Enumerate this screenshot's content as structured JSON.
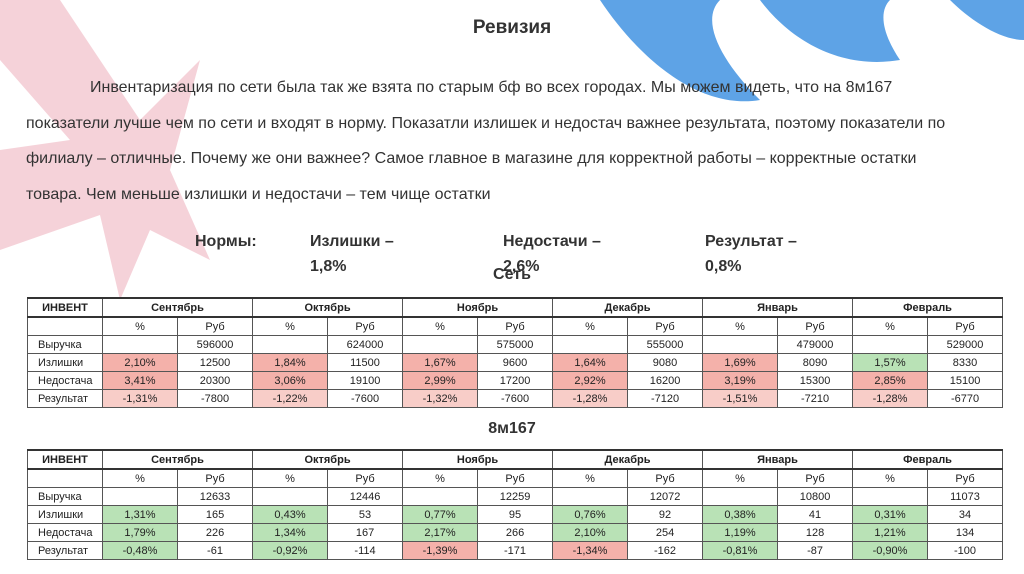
{
  "title": "Ревизия",
  "paragraph": "Инвентаризация по сети была так же взята по старым бф во всех городах. Мы можем видеть, что на 8м167 показатели лучше чем по сети и входят в норму. Показатли излишек и недостач важнее результата, поэтому показатели по филиалу – отличные. Почему же они важнее? Самое главное в магазине для корректной работы – корректные остатки товара. Чем меньше излишки и недостачи – тем чище остатки",
  "norms": {
    "label": "Нормы:",
    "items": [
      "Излишки – 1,8%",
      "Недостачи – 2,6%",
      "Результат – 0,8%"
    ]
  },
  "tables": [
    {
      "caption": "Сеть",
      "header_label": "ИНВЕНТ",
      "months": [
        "Сентябрь",
        "Октябрь",
        "Ноябрь",
        "Декабрь",
        "Январь",
        "Февраль"
      ],
      "units": [
        "%",
        "Руб"
      ],
      "rows": [
        {
          "label": "Выручка",
          "cells": [
            null,
            "596000",
            null,
            "624000",
            null,
            "575000",
            null,
            "555000",
            null,
            "479000",
            null,
            "529000"
          ]
        },
        {
          "label": "Излишки",
          "cells": [
            "2,10%",
            "12500",
            "1,84%",
            "11500",
            "1,67%",
            "9600",
            "1,64%",
            "9080",
            "1,69%",
            "8090",
            "1,57%",
            "8330"
          ],
          "colors": [
            "#f4b1aa",
            "#f4b1aa",
            "#f4b1aa",
            "#f4b1aa",
            "#f4b1aa",
            "#b9e2b6"
          ]
        },
        {
          "label": "Недостача",
          "cells": [
            "3,41%",
            "20300",
            "3,06%",
            "19100",
            "2,99%",
            "17200",
            "2,92%",
            "16200",
            "3,19%",
            "15300",
            "2,85%",
            "15100"
          ],
          "colors": [
            "#f4b1aa",
            "#f4b1aa",
            "#f4b1aa",
            "#f4b1aa",
            "#f4b1aa",
            "#f4b1aa"
          ]
        },
        {
          "label": "Результат",
          "cells": [
            "-1,31%",
            "-7800",
            "-1,22%",
            "-7600",
            "-1,32%",
            "-7600",
            "-1,28%",
            "-7120",
            "-1,51%",
            "-7210",
            "-1,28%",
            "-6770"
          ],
          "colors": [
            "#f8cdc8",
            "#f8cdc8",
            "#f8cdc8",
            "#f8cdc8",
            "#f8cdc8",
            "#f8cdc8"
          ]
        }
      ]
    },
    {
      "caption": "8м167",
      "header_label": "ИНВЕНТ",
      "months": [
        "Сентябрь",
        "Октябрь",
        "Ноябрь",
        "Декабрь",
        "Январь",
        "Февраль"
      ],
      "units": [
        "%",
        "Руб"
      ],
      "rows": [
        {
          "label": "Выручка",
          "cells": [
            null,
            "12633",
            null,
            "12446",
            null,
            "12259",
            null,
            "12072",
            null,
            "10800",
            null,
            "11073"
          ]
        },
        {
          "label": "Излишки",
          "cells": [
            "1,31%",
            "165",
            "0,43%",
            "53",
            "0,77%",
            "95",
            "0,76%",
            "92",
            "0,38%",
            "41",
            "0,31%",
            "34"
          ],
          "colors": [
            "#b9e2b6",
            "#b9e2b6",
            "#b9e2b6",
            "#b9e2b6",
            "#b9e2b6",
            "#b9e2b6"
          ]
        },
        {
          "label": "Недостача",
          "cells": [
            "1,79%",
            "226",
            "1,34%",
            "167",
            "2,17%",
            "266",
            "2,10%",
            "254",
            "1,19%",
            "128",
            "1,21%",
            "134"
          ],
          "colors": [
            "#b9e2b6",
            "#b9e2b6",
            "#b9e2b6",
            "#b9e2b6",
            "#b9e2b6",
            "#b9e2b6"
          ]
        },
        {
          "label": "Результат",
          "cells": [
            "-0,48%",
            "-61",
            "-0,92%",
            "-114",
            "-1,39%",
            "-171",
            "-1,34%",
            "-162",
            "-0,81%",
            "-87",
            "-0,90%",
            "-100"
          ],
          "colors": [
            "#b9e2b6",
            "#b9e2b6",
            "#f4b1aa",
            "#f4b1aa",
            "#b9e2b6",
            "#b9e2b6"
          ]
        }
      ]
    }
  ]
}
